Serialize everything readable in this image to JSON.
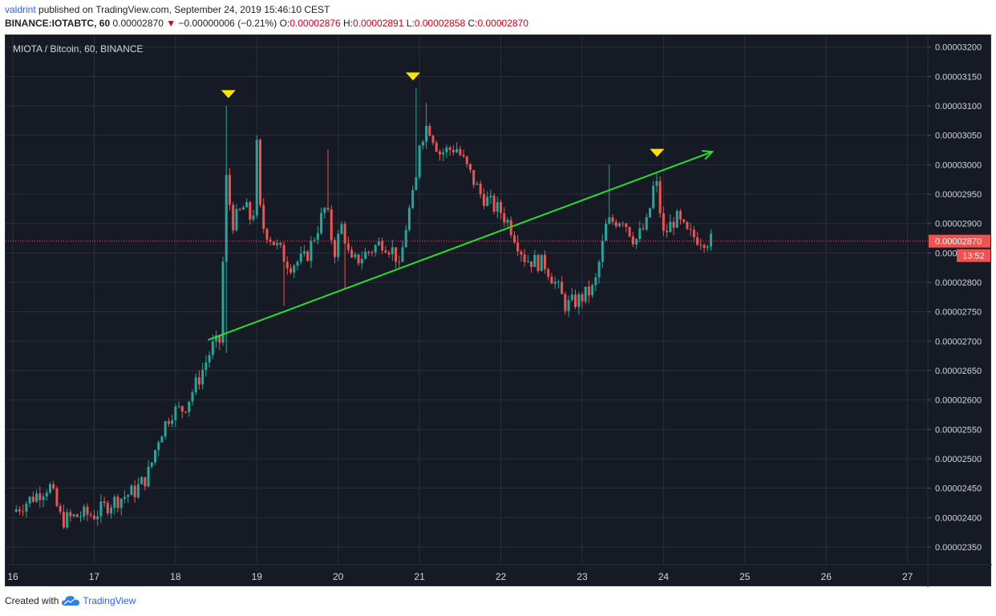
{
  "header": {
    "user": "valdrint",
    "published_text": " published on TradingView.com, September 24, 2019 15:46:10 CEST",
    "symbol": "BINANCE:IOTABTC, 60",
    "price": "0.00002870",
    "down_arrow": "▼",
    "change": "−0.00000006 (−0.21%)",
    "o_label": "O:",
    "o_value": "0.00002876",
    "h_label": "H:",
    "h_value": "0.00002891",
    "l_label": "L:",
    "l_value": "0.00002858",
    "c_label": "C:",
    "c_value": "0.00002870"
  },
  "footer": {
    "created_with": "Created with",
    "brand": "TradingView"
  },
  "colors": {
    "background": "#161a25",
    "grid": "#2a2e39",
    "up": "#26a69a",
    "down": "#ef5350",
    "trendline": "#27e02a",
    "marker": "#ffe300",
    "price_line": "#ef5350",
    "axis_text": "#d1d4dc"
  },
  "chart_data": {
    "type": "candlestick",
    "title": "MIOTA / Bitcoin, 60, BINANCE",
    "x_ticks": [
      "16",
      "17",
      "18",
      "19",
      "20",
      "21",
      "22",
      "23",
      "24",
      "25",
      "26",
      "27"
    ],
    "y_ticks": [
      "0.00003200",
      "0.00003150",
      "0.00003100",
      "0.00003050",
      "0.00003000",
      "0.00002950",
      "0.00002900",
      "0.00002850",
      "0.00002800",
      "0.00002750",
      "0.00002700",
      "0.00002650",
      "0.00002600",
      "0.00002550",
      "0.00002500",
      "0.00002450",
      "0.00002400",
      "0.00002350"
    ],
    "ylim": [
      2.32e-05,
      3.22e-05
    ],
    "xlim": [
      16.0,
      27.25
    ],
    "current_price_label": "0.00002870",
    "current_price": 2.87e-05,
    "countdown": "13:52",
    "close_path": [
      [
        16.0,
        2.41e-05
      ],
      [
        16.3,
        2.44e-05
      ],
      [
        16.45,
        2.455e-05
      ],
      [
        16.6,
        2.395e-05
      ],
      [
        16.85,
        2.405e-05
      ],
      [
        17.0,
        2.405e-05
      ],
      [
        17.2,
        2.425e-05
      ],
      [
        17.5,
        2.445e-05
      ],
      [
        17.65,
        2.47e-05
      ],
      [
        17.7,
        2.49e-05
      ],
      [
        17.8,
        2.54e-05
      ],
      [
        17.95,
        2.58e-05
      ],
      [
        18.1,
        2.585e-05
      ],
      [
        18.3,
        2.64e-05
      ],
      [
        18.45,
        2.69e-05
      ],
      [
        18.55,
        2.7e-05
      ],
      [
        18.62,
        2.98e-05
      ],
      [
        18.7,
        2.9e-05
      ],
      [
        18.85,
        2.93e-05
      ],
      [
        18.95,
        2.9e-05
      ],
      [
        19.0,
        3.03e-05
      ],
      [
        19.05,
        2.9e-05
      ],
      [
        19.25,
        2.86e-05
      ],
      [
        19.4,
        2.83e-05
      ],
      [
        19.6,
        2.84e-05
      ],
      [
        19.85,
        2.93e-05
      ],
      [
        19.95,
        2.85e-05
      ],
      [
        20.05,
        2.9e-05
      ],
      [
        20.15,
        2.83e-05
      ],
      [
        20.35,
        2.85e-05
      ],
      [
        20.55,
        2.87e-05
      ],
      [
        20.7,
        2.85e-05
      ],
      [
        20.75,
        2.82e-05
      ],
      [
        20.85,
        2.91e-05
      ],
      [
        20.95,
        2.96e-05
      ],
      [
        21.0,
        3.04e-05
      ],
      [
        21.1,
        3.07e-05
      ],
      [
        21.25,
        3.02e-05
      ],
      [
        21.45,
        3.03e-05
      ],
      [
        21.6,
        2.99e-05
      ],
      [
        21.75,
        2.95e-05
      ],
      [
        21.9,
        2.93e-05
      ],
      [
        22.0,
        2.92e-05
      ],
      [
        22.1,
        2.9e-05
      ],
      [
        22.3,
        2.84e-05
      ],
      [
        22.55,
        2.83e-05
      ],
      [
        22.7,
        2.79e-05
      ],
      [
        22.8,
        2.76e-05
      ],
      [
        22.95,
        2.77e-05
      ],
      [
        23.15,
        2.79e-05
      ],
      [
        23.3,
        2.9e-05
      ],
      [
        23.5,
        2.91e-05
      ],
      [
        23.65,
        2.87e-05
      ],
      [
        23.8,
        2.9e-05
      ],
      [
        23.9,
        2.98e-05
      ],
      [
        24.0,
        2.88e-05
      ],
      [
        24.15,
        2.91e-05
      ],
      [
        24.3,
        2.88e-05
      ],
      [
        24.6,
        2.87e-05
      ]
    ],
    "spike_highs": [
      [
        18.63,
        3.1e-05
      ],
      [
        19.02,
        3.05e-05
      ],
      [
        19.88,
        3.025e-05
      ],
      [
        20.95,
        3.13e-05
      ],
      [
        21.08,
        3.105e-05
      ],
      [
        23.35,
        3e-05
      ],
      [
        23.92,
        2.985e-05
      ]
    ],
    "spike_lows": [
      [
        18.63,
        2.68e-05
      ],
      [
        19.35,
        2.76e-05
      ],
      [
        20.1,
        2.79e-05
      ],
      [
        22.95,
        2.745e-05
      ]
    ],
    "trendline": [
      [
        18.4,
        2.702e-05
      ],
      [
        24.6,
        3.022e-05
      ]
    ],
    "markers": [
      [
        18.65,
        3.12e-05
      ],
      [
        20.92,
        3.15e-05
      ],
      [
        23.92,
        3.02e-05
      ]
    ]
  }
}
